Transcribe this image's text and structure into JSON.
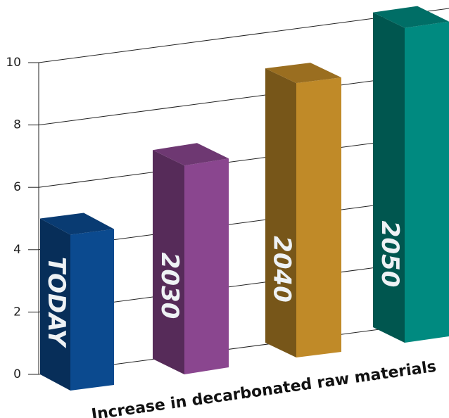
{
  "chart_data": {
    "type": "bar3d",
    "categories": [
      "TODAY",
      "2030",
      "2040",
      "2050"
    ],
    "values": [
      5,
      6.7,
      8.8,
      10.1
    ],
    "colors": [
      "#0b4a8f",
      "#8a468f",
      "#c08a28",
      "#008a80"
    ],
    "ylim": [
      0,
      10
    ],
    "yticks": [
      0,
      2,
      4,
      6,
      8,
      10
    ],
    "grid": true,
    "x_label": "Increase in decarbonated raw materials"
  }
}
